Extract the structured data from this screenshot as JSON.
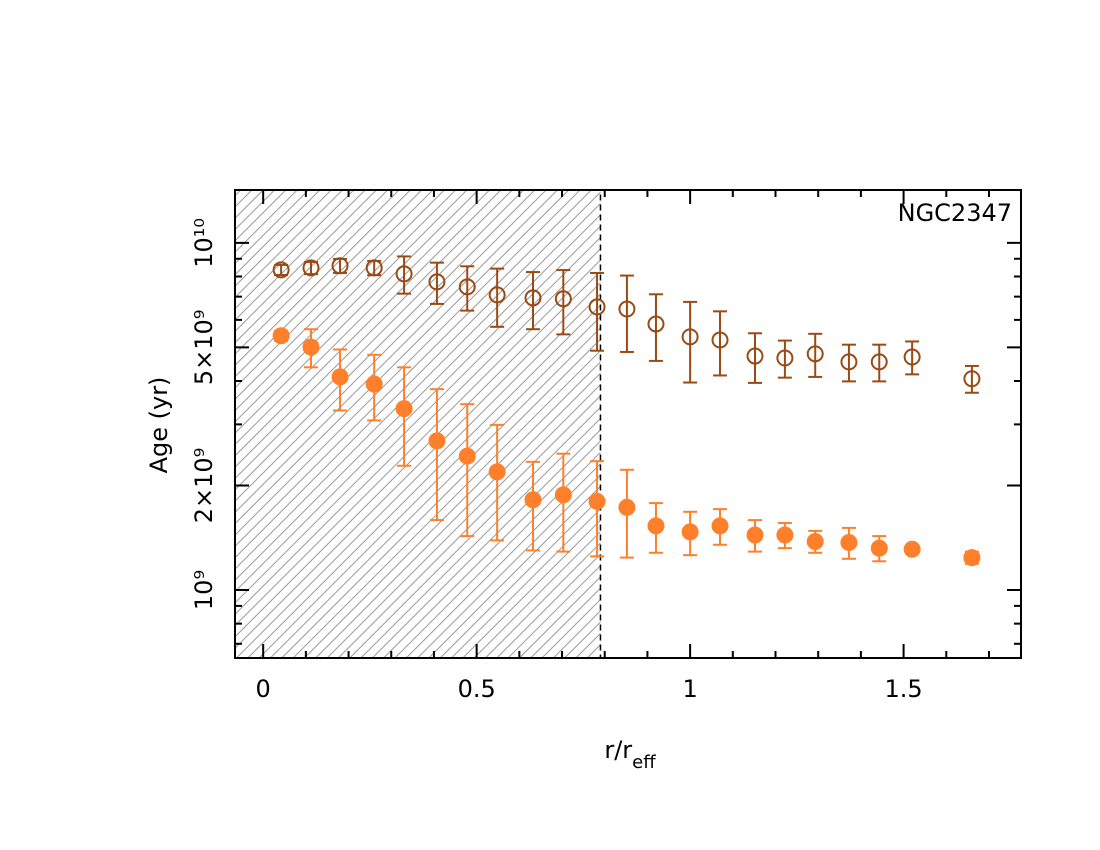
{
  "chart_data": {
    "type": "scatter",
    "annotation": "NGC2347",
    "ylabel": "Age (yr)",
    "xlabel": "r/r",
    "xlabel_sub": "eff",
    "log_y": true,
    "xlim": [
      -0.066,
      1.775
    ],
    "ylim": [
      637000000.0,
      14200000000.0
    ],
    "xticks": [
      0,
      0.5,
      1,
      1.5
    ],
    "xminorticks": [
      0.1,
      0.2,
      0.3,
      0.4,
      0.6,
      0.7,
      0.8,
      0.9,
      1.1,
      1.2,
      1.3,
      1.4,
      1.6,
      1.7
    ],
    "yticks": [
      {
        "value": 1000000000.0,
        "label": "10⁹"
      },
      {
        "value": 2000000000.0,
        "label": "2×10⁹"
      },
      {
        "value": 5000000000.0,
        "label": "5×10⁹"
      },
      {
        "value": 10000000000.0,
        "label": "10¹⁰"
      }
    ],
    "yminorticks": [
      700000000.0,
      800000000.0,
      900000000.0,
      3000000000.0,
      4000000000.0,
      6000000000.0,
      7000000000.0,
      8000000000.0,
      9000000000.0
    ],
    "shade_xmax": 0.79,
    "x": [
      0.042,
      0.112,
      0.18,
      0.26,
      0.33,
      0.407,
      0.478,
      0.548,
      0.632,
      0.703,
      0.782,
      0.852,
      0.92,
      1.0,
      1.07,
      1.152,
      1.222,
      1.293,
      1.372,
      1.443,
      1.52,
      1.66
    ],
    "series": [
      {
        "color": "#9a4a14",
        "marker": "open",
        "values": [
          8360000000.0,
          8470000000.0,
          8590000000.0,
          8470000000.0,
          8140000000.0,
          7720000000.0,
          7470000000.0,
          7080000000.0,
          6940000000.0,
          6900000000.0,
          6540000000.0,
          6450000000.0,
          5840000000.0,
          5360000000.0,
          5250000000.0,
          4720000000.0,
          4660000000.0,
          4790000000.0,
          4540000000.0,
          4540000000.0,
          4690000000.0,
          4060000000.0
        ],
        "yerr": [
          280000000.0,
          340000000.0,
          400000000.0,
          400000000.0,
          1000000000.0,
          1050000000.0,
          1090000000.0,
          1350000000.0,
          1300000000.0,
          1450000000.0,
          1650000000.0,
          1600000000.0,
          1270000000.0,
          1400000000.0,
          1100000000.0,
          770000000.0,
          570000000.0,
          680000000.0,
          550000000.0,
          550000000.0,
          510000000.0,
          360000000.0
        ]
      },
      {
        "color": "#ff7f2a",
        "marker": "filled",
        "values": [
          5400000000.0,
          5010000000.0,
          4110000000.0,
          3920000000.0,
          3330000000.0,
          2690000000.0,
          2430000000.0,
          2190000000.0,
          1820000000.0,
          1880000000.0,
          1800000000.0,
          1730000000.0,
          1530000000.0,
          1470000000.0,
          1530000000.0,
          1440000000.0,
          1440000000.0,
          1380000000.0,
          1370000000.0,
          1320000000.0,
          1310000000.0,
          1240000000.0
        ],
        "yerr": [
          180000000.0,
          630000000.0,
          820000000.0,
          840000000.0,
          1050000000.0,
          1100000000.0,
          1000000000.0,
          800000000.0,
          520000000.0,
          590000000.0,
          550000000.0,
          490000000.0,
          250000000.0,
          210000000.0,
          180000000.0,
          150000000.0,
          120000000.0,
          100000000.0,
          140000000.0,
          110000000.0,
          30000000.0,
          50000000.0
        ]
      }
    ]
  }
}
